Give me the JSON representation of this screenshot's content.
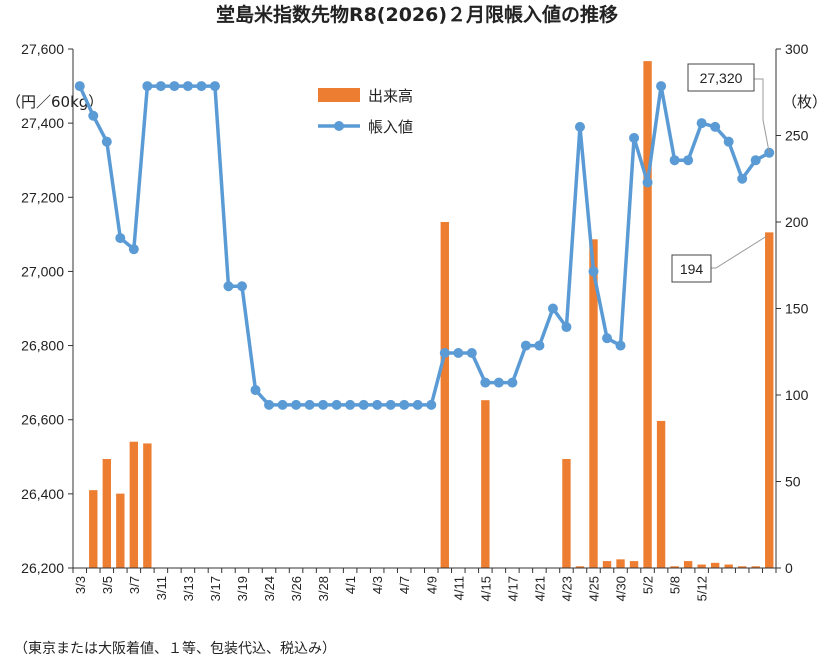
{
  "chart_data": {
    "type": "bar+line",
    "title": "堂島米指数先物R8(2026)２月限帳入値の推移",
    "left_unit": "（円／60kg）",
    "right_unit": "（枚）",
    "footnote": "（東京または大阪着値、１等、包装代込、税込み）",
    "y_left": {
      "min": 26200,
      "max": 27600,
      "ticks": [
        26200,
        26400,
        26600,
        26800,
        27000,
        27200,
        27400,
        27600
      ],
      "tick_labels": [
        "26,200",
        "26,400",
        "26,600",
        "26,800",
        "27,000",
        "27,200",
        "27,400",
        "27,600"
      ]
    },
    "y_right": {
      "min": 0,
      "max": 300,
      "ticks": [
        0,
        50,
        100,
        150,
        200,
        250,
        300
      ],
      "tick_labels": [
        "0",
        "50",
        "100",
        "150",
        "200",
        "250",
        "300"
      ]
    },
    "x_tick_labels": [
      "3/3",
      "3/5",
      "3/7",
      "3/11",
      "3/13",
      "3/17",
      "3/19",
      "3/24",
      "3/26",
      "3/28",
      "4/1",
      "4/3",
      "4/7",
      "4/9",
      "4/11",
      "4/15",
      "4/17",
      "4/21",
      "4/23",
      "4/25",
      "4/30",
      "5/2",
      "5/8",
      "5/12"
    ],
    "legend": [
      {
        "name": "出来高",
        "color": "#ED7D31"
      },
      {
        "name": "帳入値",
        "color": "#5B9BD5"
      }
    ],
    "series": [
      {
        "name": "出来高",
        "axis": "right",
        "color": "#ED7D31",
        "values": [
          0,
          45,
          63,
          43,
          73,
          72,
          0,
          0,
          0,
          0,
          0,
          0,
          0,
          0,
          0,
          0,
          0,
          0,
          0,
          0,
          0,
          0,
          0,
          0,
          0,
          0,
          0,
          200,
          0,
          0,
          97,
          0,
          0,
          0,
          0,
          0,
          63,
          1,
          190,
          4,
          5,
          4,
          293,
          85,
          1,
          4,
          2,
          3,
          2,
          1,
          1,
          194
        ]
      },
      {
        "name": "帳入値",
        "axis": "left",
        "color": "#5B9BD5",
        "values": [
          27500,
          27420,
          27350,
          27090,
          27060,
          27500,
          27500,
          27500,
          27500,
          27500,
          27500,
          26960,
          26960,
          26680,
          26640,
          26640,
          26640,
          26640,
          26640,
          26640,
          26640,
          26640,
          26640,
          26640,
          26640,
          26640,
          26640,
          26780,
          26780,
          26780,
          26700,
          26700,
          26700,
          26800,
          26800,
          26900,
          26850,
          27390,
          27000,
          26820,
          26800,
          27360,
          27240,
          27500,
          27300,
          27300,
          27400,
          27390,
          27350,
          27250,
          27300,
          27320
        ]
      }
    ],
    "annotations": [
      {
        "text": "27,320",
        "series": "帳入値"
      },
      {
        "text": "194",
        "series": "出来高"
      }
    ],
    "grid": false,
    "legend_position": "top-center"
  }
}
